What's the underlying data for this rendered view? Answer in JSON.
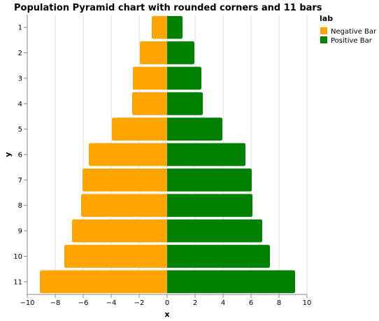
{
  "chart_data": {
    "type": "bar",
    "orientation": "horizontal",
    "title": "Population Pyramid chart with rounded corners and 11 bars",
    "xlabel": "x",
    "ylabel": "y",
    "xlim": [
      -10,
      10
    ],
    "x_ticks": [
      -10,
      -8,
      -6,
      -4,
      -2,
      0,
      2,
      4,
      6,
      8,
      10
    ],
    "x_tick_labels": [
      "−10",
      "−8",
      "−6",
      "−4",
      "−2",
      "0",
      "2",
      "4",
      "6",
      "8",
      "10"
    ],
    "categories": [
      "1",
      "2",
      "3",
      "4",
      "5",
      "6",
      "7",
      "8",
      "9",
      "10",
      "11"
    ],
    "grid": true,
    "legend": {
      "title": "lab",
      "position": "top-right",
      "items": [
        {
          "label": "Negative Bar",
          "color": "#FFA500"
        },
        {
          "label": "Positive Bar",
          "color": "#008000"
        }
      ]
    },
    "series": [
      {
        "name": "Negative Bar",
        "color": "#FFA500",
        "values": [
          -1.1,
          -1.95,
          -2.45,
          -2.5,
          -3.95,
          -5.6,
          -6.05,
          -6.15,
          -6.8,
          -7.35,
          -9.1
        ]
      },
      {
        "name": "Positive Bar",
        "color": "#008000",
        "values": [
          1.1,
          1.95,
          2.45,
          2.55,
          3.95,
          5.6,
          6.05,
          6.1,
          6.8,
          7.35,
          9.15
        ]
      }
    ]
  }
}
